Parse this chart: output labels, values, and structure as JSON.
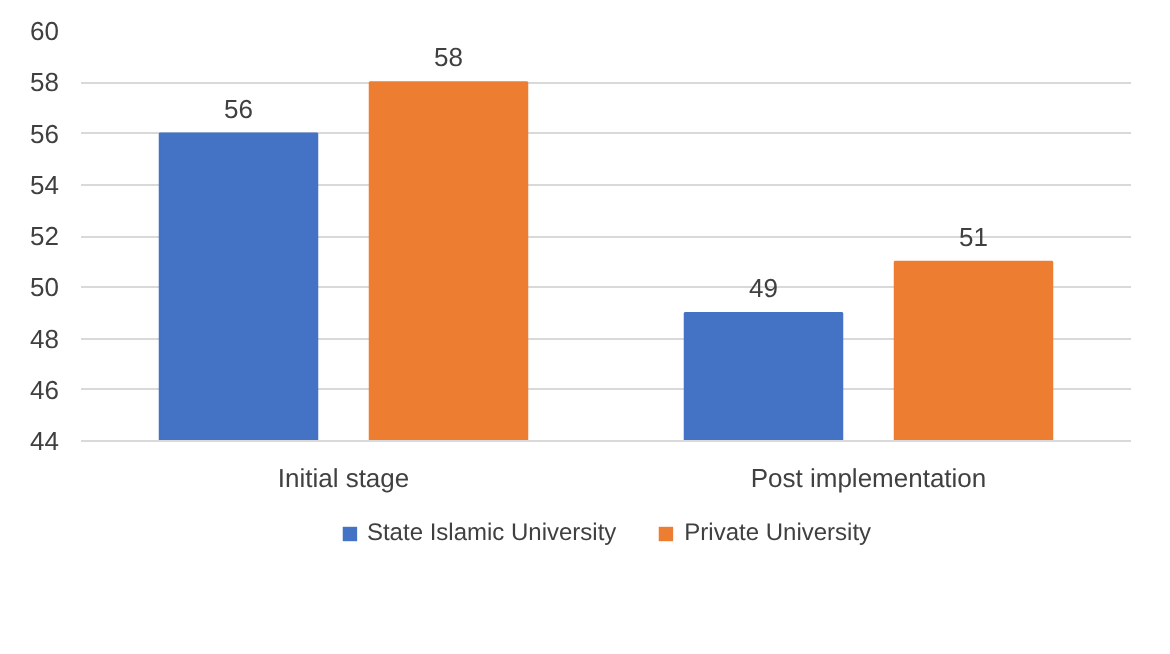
{
  "chart_data": {
    "type": "bar",
    "categories": [
      "Initial stage",
      "Post implementation"
    ],
    "series": [
      {
        "name": "State Islamic University",
        "color": "#4472c4",
        "values": [
          56,
          49
        ]
      },
      {
        "name": "Private University",
        "color": "#ed7d31",
        "values": [
          58,
          51
        ]
      }
    ],
    "ylim": [
      44,
      60
    ],
    "yticks": [
      44,
      46,
      48,
      50,
      52,
      54,
      56,
      58,
      60
    ],
    "grid": "y",
    "legend": "bottom",
    "data_labels": true
  }
}
